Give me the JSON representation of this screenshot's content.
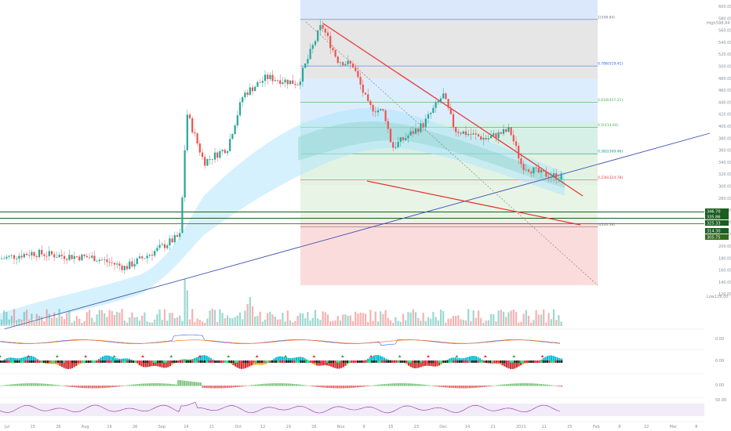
{
  "chart_data": {
    "type": "candlestick",
    "xlabel": "",
    "ylabel": "",
    "ylim": [
      120,
      620
    ],
    "x_ticks": [
      "Jul",
      "15",
      "26",
      "Aug",
      "16",
      "26",
      "Sep",
      "14",
      "21",
      "Oct",
      "12",
      "19",
      "26",
      "Nov",
      "9",
      "16",
      "23",
      "Dec",
      "14",
      "21",
      "2021",
      "11",
      "25",
      "Feb",
      "8",
      "22",
      "Mar",
      "8"
    ],
    "y_ticks": [
      "600.00",
      "580.00",
      "560.00",
      "540.00",
      "520.00",
      "500.00",
      "480.00",
      "460.00",
      "440.00",
      "420.00",
      "400.00",
      "380.00",
      "360.00",
      "340.00",
      "320.00",
      "300.00",
      "280.00",
      "260.00",
      "240.00",
      "220.00",
      "200.00",
      "180.00",
      "160.00",
      "140.00",
      "120.00"
    ],
    "high_label": "High",
    "high_value": "598.84",
    "low_label": "Low",
    "low_value": "126.00",
    "price_tags": [
      "346.70",
      "335.86",
      "325.33",
      "314.30",
      "305.75"
    ],
    "fib_levels": [
      {
        "label": "1(598.84)",
        "price": 598.84,
        "color": "#787b86"
      },
      {
        "label": "0.786(519.41)",
        "price": 519.41,
        "color": "#2962ff"
      },
      {
        "label": "0.618(457.21)",
        "price": 457.21,
        "color": "#4caf50"
      },
      {
        "label": "0.5(414.64)",
        "price": 414.64,
        "color": "#4caf50"
      },
      {
        "label": "0.382(369.46)",
        "price": 369.46,
        "color": "#089981"
      },
      {
        "label": "0.236(324.78)",
        "price": 324.78,
        "color": "#f23645"
      },
      {
        "label": "0(244.38)",
        "price": 244.38,
        "color": "#787b86"
      }
    ],
    "oscillator_ticks": [
      "0.00",
      "0.00",
      "0.00",
      "50.00"
    ],
    "colors": {
      "up": "#26a69a",
      "down": "#ef5350",
      "trend_red": "#e53935",
      "trend_blue": "#3f51b5",
      "hline": "#1b5e20",
      "rsi": "#9c27b0"
    }
  }
}
